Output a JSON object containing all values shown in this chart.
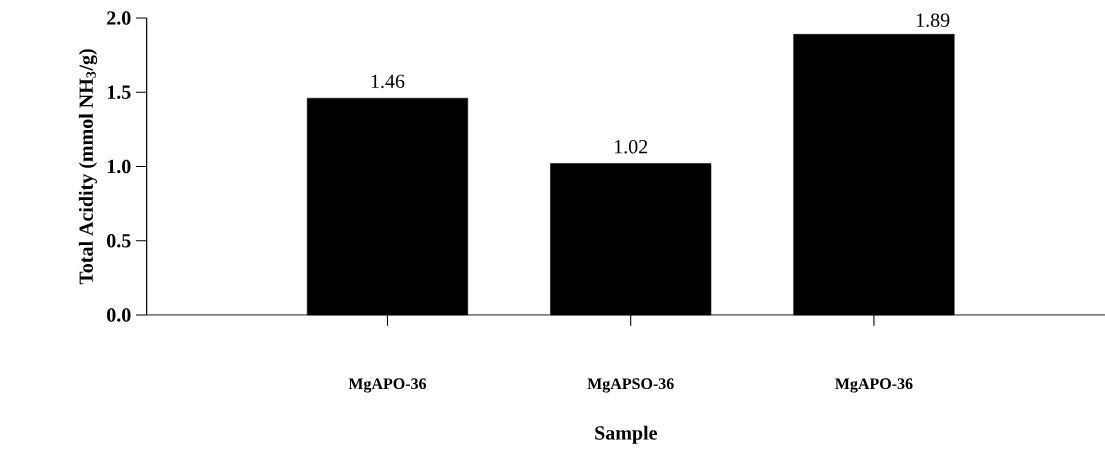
{
  "chart_data": {
    "type": "bar",
    "xlabel": "Sample",
    "ylabel": "Total Acidity (mmol NH$_{3}$/g)",
    "categories": [
      "MgAPO-36",
      "MgAPSO-36",
      "MgAPO-36"
    ],
    "values": [
      1.46,
      1.02,
      1.89
    ],
    "color": "#000000",
    "ylim": [
      0,
      2.0
    ],
    "yticks": [
      {
        "value": 0,
        "label": "0.0"
      },
      {
        "value": 0.5,
        "label": "0.5"
      },
      {
        "value": 1.0,
        "label": "1.0"
      },
      {
        "value": 1.5,
        "label": "1.5"
      },
      {
        "value": 2.0,
        "label": "2.0"
      }
    ],
    "data_labels": true
  }
}
